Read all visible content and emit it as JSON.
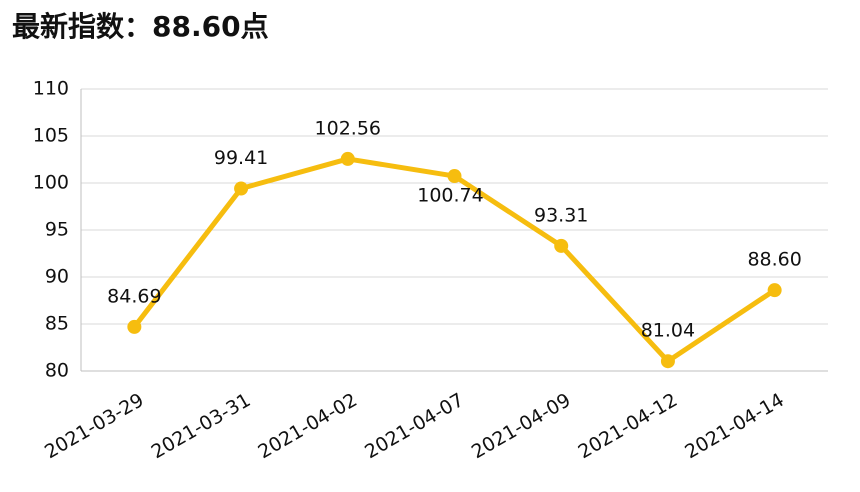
{
  "chart_data": {
    "type": "line",
    "title": "最新指数：88.60点",
    "categories": [
      "2021-03-29",
      "2021-03-31",
      "2021-04-02",
      "2021-04-07",
      "2021-04-09",
      "2021-04-12",
      "2021-04-14"
    ],
    "values": [
      84.69,
      99.41,
      102.56,
      100.74,
      93.31,
      81.04,
      88.6
    ],
    "value_labels": [
      "84.69",
      "99.41",
      "102.56",
      "100.74",
      "93.31",
      "81.04",
      "88.60"
    ],
    "color": "#f6bd0f",
    "ylim": [
      80,
      110
    ],
    "yticks": [
      80,
      85,
      90,
      95,
      100,
      105,
      110
    ],
    "grid": true
  }
}
